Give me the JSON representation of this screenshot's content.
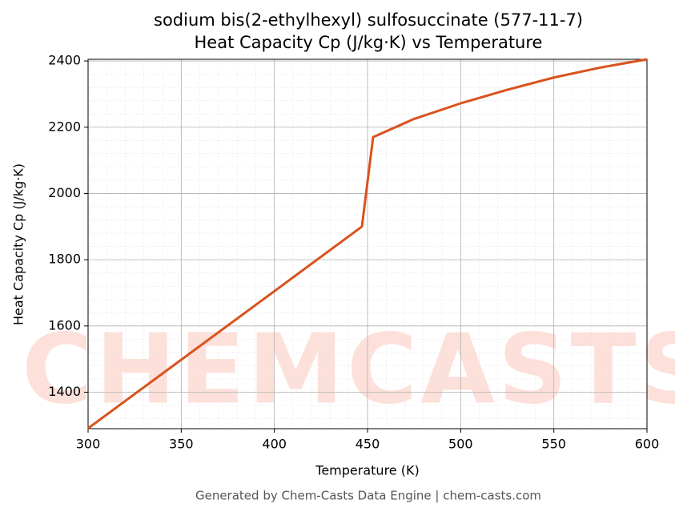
{
  "chart_data": {
    "type": "line",
    "title": "sodium bis(2-ethylhexyl) sulfosuccinate (577-11-7)",
    "subtitle": "Heat Capacity Cp (J/kg·K) vs Temperature",
    "x_label": "Temperature (K)",
    "y_label": "Heat Capacity Cp (J/kg·K)",
    "watermark": "CHEMCASTS",
    "footer": "Generated by Chem-Casts Data Engine | chem-casts.com",
    "x": [
      300,
      350,
      400,
      447,
      453,
      475,
      500,
      525,
      550,
      575,
      600
    ],
    "series": [
      {
        "name": "Cp",
        "color": "#d9531e",
        "values": [
          1291,
          1498,
          1705,
          1900,
          2170,
          2225,
          2272,
          2313,
          2350,
          2380,
          2405
        ]
      }
    ],
    "xlim": [
      300,
      600
    ],
    "xticks": [
      300,
      350,
      400,
      450,
      500,
      550,
      600
    ],
    "ylim": [
      1290,
      2405
    ],
    "yticks": [
      1400,
      1600,
      1800,
      2000,
      2200,
      2400
    ],
    "grid": true
  }
}
